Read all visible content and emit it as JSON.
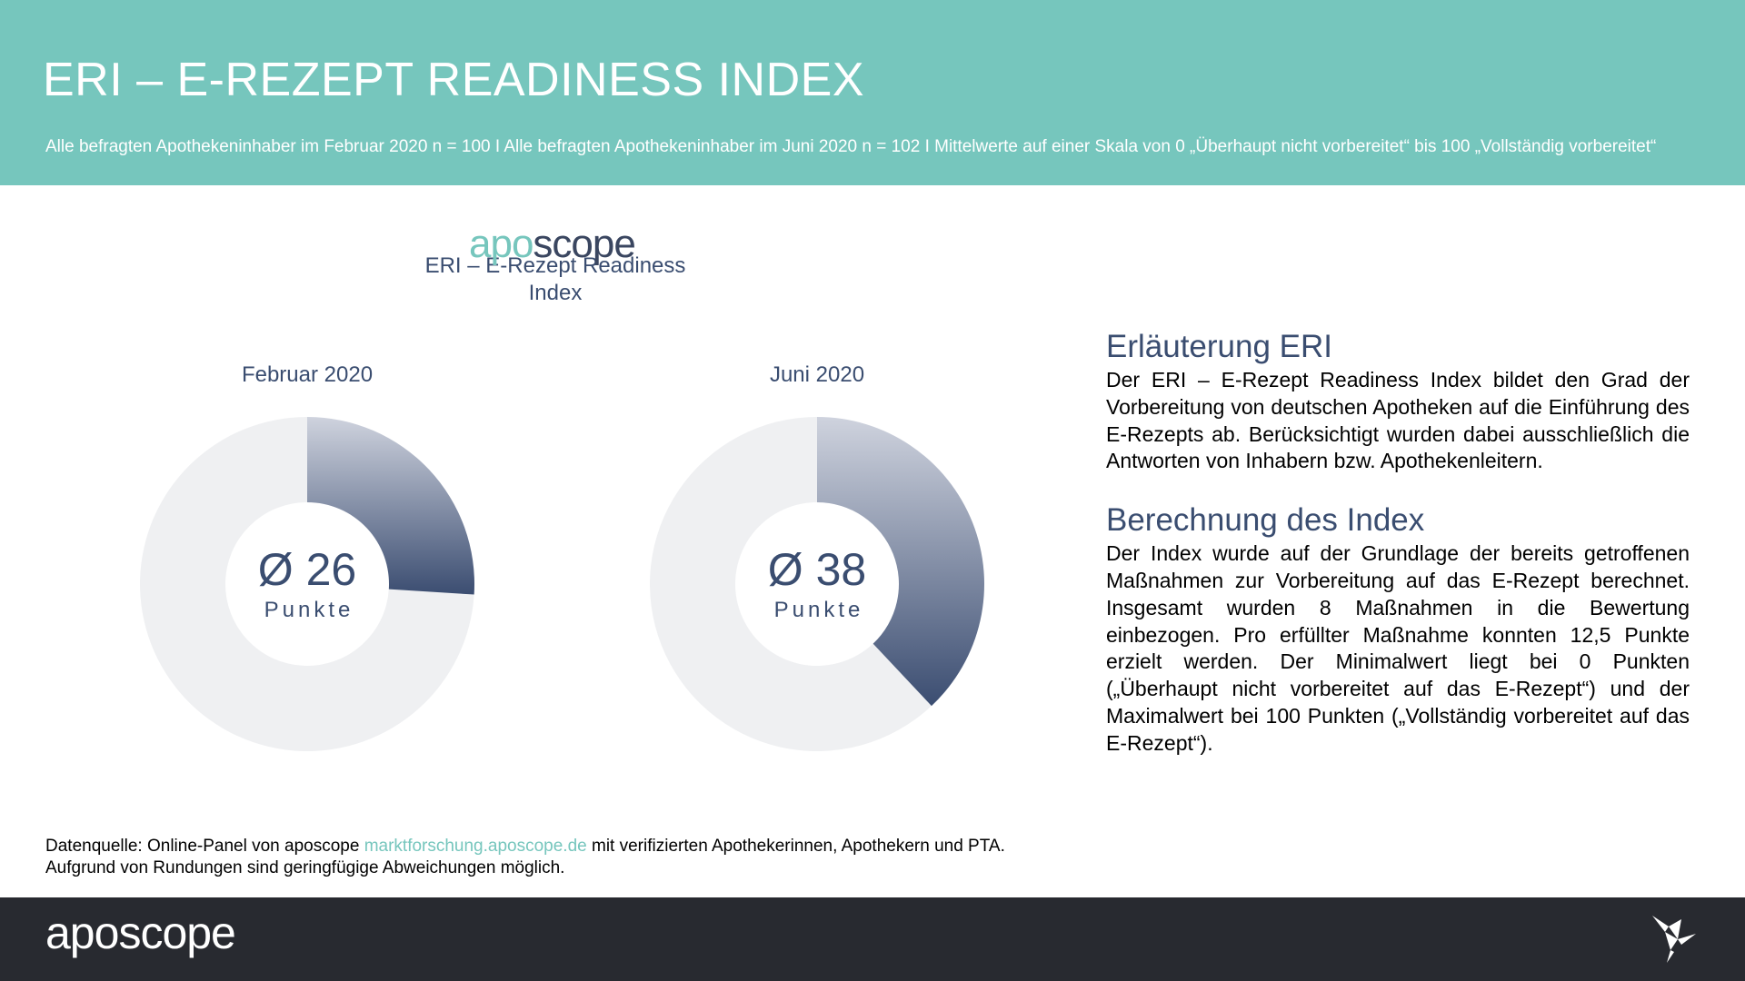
{
  "header": {
    "title": "ERI – E-REZEPT READINESS INDEX",
    "subtitle": "Alle befragten Apothekeninhaber im Februar 2020 n = 100 I Alle befragten Apothekeninhaber im Juni 2020 n = 102 I Mittelwerte auf einer Skala von 0 „Überhaupt nicht vorbereitet“ bis 100 „Vollständig vorbereitet“"
  },
  "logo_small": {
    "part1": "apo",
    "part2": "scope"
  },
  "chart_data": {
    "type": "pie",
    "title": "ERI – E-Rezept Readiness Index",
    "scale": [
      0,
      100
    ],
    "unit": "Punkte",
    "series": [
      {
        "name": "Februar 2020",
        "value": 26,
        "label": "Ø 26"
      },
      {
        "name": "Juni 2020",
        "value": 38,
        "label": "Ø 38"
      }
    ],
    "colors": {
      "fill_top": "#cfd3de",
      "fill_bottom": "#3b4d71",
      "remainder": "#eff0f2"
    }
  },
  "explanation": {
    "heading1": "Erläuterung ERI",
    "text1": "Der ERI – E-Rezept Readiness Index bildet den Grad der Vorbereitung von deutschen Apotheken auf die Einführung des E-Rezepts ab. Berücksichtigt wurden dabei ausschließlich die Antworten von Inhabern bzw. Apothekenleitern.",
    "heading2": "Berechnung des Index",
    "text2": "Der Index wurde auf der Grundlage der bereits getroffenen Maßnahmen zur Vorbereitung auf das E-Rezept berechnet. Insgesamt wurden 8 Maßnahmen in die Bewertung einbezogen. Pro erfüllter Maßnahme konnten 12,5 Punkte erzielt werden. Der Minimalwert liegt bei 0 Punkten („Überhaupt nicht vorbereitet auf das E-Rezept“) und der  Maximalwert bei 100 Punkten („Vollständig vorbereitet auf das E-Rezept“)."
  },
  "source": {
    "prefix": "Datenquelle: Online-Panel von aposcope ",
    "link": "marktforschung.aposcope.de",
    "suffix": " mit verifizierten Apothekerinnen, Apothekern und PTA.",
    "line2": "Aufgrund von Rundungen sind geringfügige Abweichungen möglich."
  },
  "footer": {
    "logo_part1": "apo",
    "logo_part2": "scope",
    "bird_icon": "origami-bird-icon"
  }
}
